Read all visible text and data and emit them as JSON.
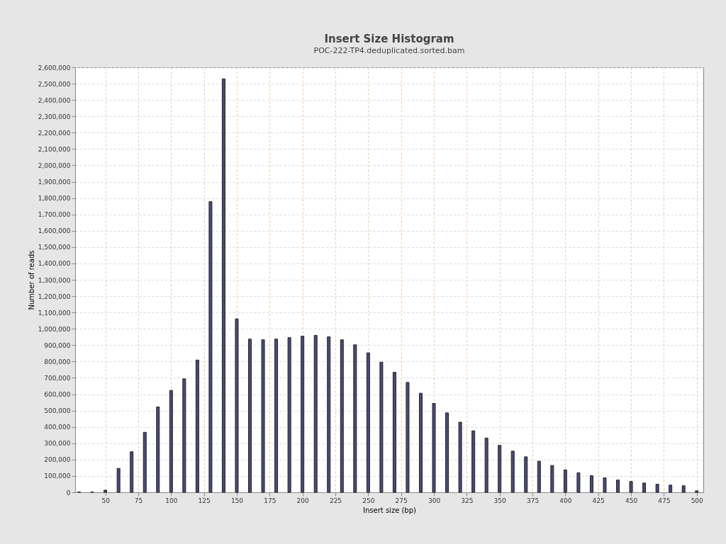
{
  "chart_data": {
    "type": "bar",
    "title": "Insert Size Histogram",
    "subtitle": "POC-222-TP4.deduplicated.sorted.bam",
    "xlabel": "Insert size (bp)",
    "ylabel": "Number of reads",
    "x": [
      30,
      40,
      50,
      60,
      70,
      80,
      90,
      100,
      110,
      120,
      130,
      140,
      150,
      160,
      170,
      180,
      190,
      200,
      210,
      220,
      230,
      240,
      250,
      260,
      270,
      280,
      290,
      300,
      310,
      320,
      330,
      340,
      350,
      360,
      370,
      380,
      390,
      400,
      410,
      420,
      430,
      440,
      450,
      460,
      470,
      480,
      490,
      500
    ],
    "values": [
      2000,
      1000,
      13000,
      146000,
      248000,
      367000,
      522000,
      623000,
      694000,
      809000,
      1778000,
      2529000,
      1061000,
      937000,
      933000,
      937000,
      946000,
      955000,
      960000,
      951000,
      933000,
      902000,
      853000,
      796000,
      734000,
      672000,
      606000,
      544000,
      486000,
      429000,
      376000,
      332000,
      287000,
      252000,
      217000,
      190000,
      164000,
      137000,
      119000,
      102000,
      88000,
      75000,
      66000,
      57000,
      49000,
      44000,
      40000,
      9000
    ],
    "color": "#4a4a7a",
    "xlim": [
      27,
      505
    ],
    "xticks": [
      50,
      75,
      100,
      125,
      150,
      175,
      200,
      225,
      250,
      275,
      300,
      325,
      350,
      375,
      400,
      425,
      450,
      475,
      500
    ],
    "ylim": [
      0,
      2600000
    ],
    "yticks": [
      0,
      {
        "value": 100000,
        "label": "100,000"
      },
      {
        "value": 200000,
        "label": "200,000"
      },
      {
        "value": 300000,
        "label": "300,000"
      },
      {
        "value": 400000,
        "label": "400,000"
      },
      {
        "value": 500000,
        "label": "500,000"
      },
      {
        "value": 600000,
        "label": "600,000"
      },
      {
        "value": 700000,
        "label": "700,000"
      },
      {
        "value": 800000,
        "label": "800,000"
      },
      {
        "value": 900000,
        "label": "900,000"
      },
      {
        "value": 1000000,
        "label": "1,000,000"
      },
      {
        "value": 1100000,
        "label": "1,100,000"
      },
      {
        "value": 1200000,
        "label": "1,200,000"
      },
      {
        "value": 1300000,
        "label": "1,300,000"
      },
      {
        "value": 1400000,
        "label": "1,400,000"
      },
      {
        "value": 1500000,
        "label": "1,500,000"
      },
      {
        "value": 1600000,
        "label": "1,600,000"
      },
      {
        "value": 1700000,
        "label": "1,700,000"
      },
      {
        "value": 1800000,
        "label": "1,800,000"
      },
      {
        "value": 1900000,
        "label": "1,900,000"
      },
      {
        "value": 2000000,
        "label": "2,000,000"
      },
      {
        "value": 2100000,
        "label": "2,100,000"
      },
      {
        "value": 2200000,
        "label": "2,200,000"
      },
      {
        "value": 2300000,
        "label": "2,300,000"
      },
      {
        "value": 2400000,
        "label": "2,400,000"
      },
      {
        "value": 2500000,
        "label": "2,500,000"
      },
      {
        "value": 2600000,
        "label": "2,600,000"
      }
    ],
    "grid": true
  }
}
